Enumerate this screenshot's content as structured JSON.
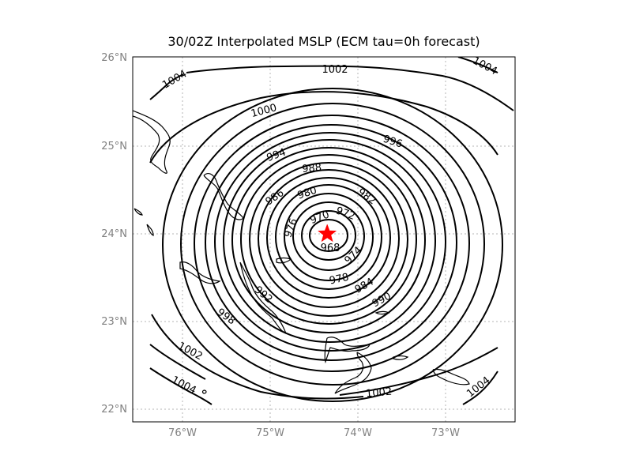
{
  "map": {
    "title": "30/02Z Interpolated MSLP (ECM tau=0h forecast)",
    "lon_range": [
      -76.55,
      -72.35
    ],
    "lat_range": [
      21.9,
      26.0
    ],
    "lon_ticks": [
      -76,
      -75,
      -74,
      -73
    ],
    "lat_ticks": [
      22,
      23,
      24,
      25,
      26
    ],
    "lon_tick_labels": [
      "76°W",
      "75°W",
      "74°W",
      "73°W"
    ],
    "lat_tick_labels": [
      "22°N",
      "23°N",
      "24°N",
      "25°N",
      "26°N"
    ],
    "storm_center": {
      "lon": -74.35,
      "lat": 24.0,
      "marker": "star",
      "color": "#ff0000"
    },
    "contour_units": "hPa",
    "contour_levels": [
      968,
      970,
      972,
      974,
      976,
      978,
      980,
      982,
      984,
      986,
      988,
      990,
      992,
      994,
      996,
      998,
      1000,
      1002,
      1004
    ],
    "contour_labels": [
      {
        "text": "1002"
      },
      {
        "text": "1004"
      },
      {
        "text": "1004"
      },
      {
        "text": "1000"
      },
      {
        "text": "996"
      },
      {
        "text": "994"
      },
      {
        "text": "988"
      },
      {
        "text": "986"
      },
      {
        "text": "980"
      },
      {
        "text": "982"
      },
      {
        "text": "970"
      },
      {
        "text": "972"
      },
      {
        "text": "976"
      },
      {
        "text": "968"
      },
      {
        "text": "974"
      },
      {
        "text": "978"
      },
      {
        "text": "984"
      },
      {
        "text": "990"
      },
      {
        "text": "992"
      },
      {
        "text": "998"
      },
      {
        "text": "1002"
      },
      {
        "text": "1004"
      },
      {
        "text": "1002"
      },
      {
        "text": "1004"
      }
    ],
    "colors": {
      "contour": "#000000",
      "grid": "#b5b5b5",
      "tick_label": "#808080",
      "marker": "#ff0000"
    }
  }
}
